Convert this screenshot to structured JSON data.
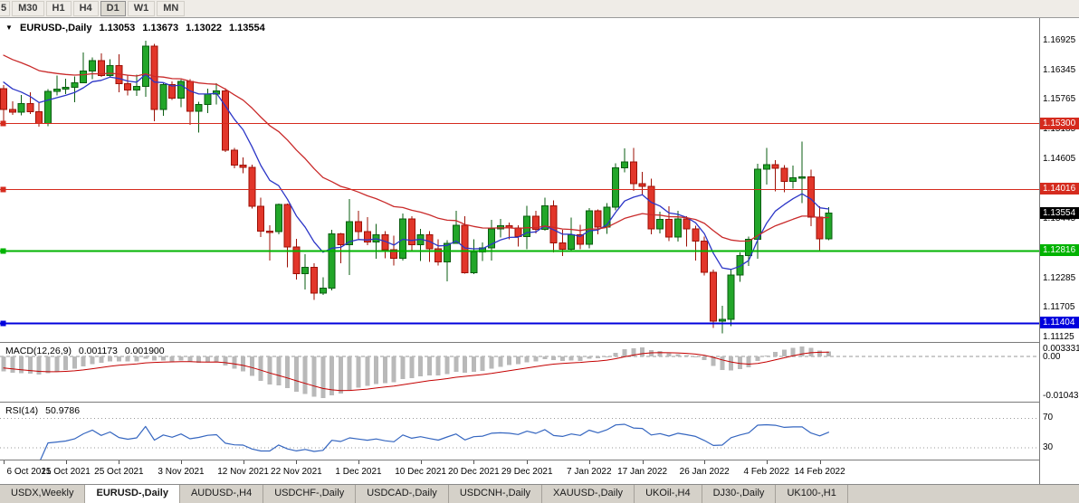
{
  "toolbar": {
    "timeframes": [
      {
        "label": "5",
        "active": false,
        "partial": true
      },
      {
        "label": "M30",
        "active": false
      },
      {
        "label": "H1",
        "active": false
      },
      {
        "label": "H4",
        "active": false
      },
      {
        "label": "D1",
        "active": true
      },
      {
        "label": "W1",
        "active": false
      },
      {
        "label": "MN",
        "active": false
      }
    ]
  },
  "chart": {
    "symbol_period": "EURUSD-,Daily",
    "ohlc": {
      "open": "1.13053",
      "high": "1.13673",
      "low": "1.13022",
      "close": "1.13554"
    },
    "current_price": "1.13554",
    "current_price_bg": "#000000",
    "price_axis_labels": [
      "1.16925",
      "1.16345",
      "1.15765",
      "1.15185",
      "1.14605",
      "1.14025",
      "1.13445",
      "1.12865",
      "1.12285",
      "1.11705",
      "1.11125"
    ],
    "levels": [
      {
        "price": 1.153,
        "label": "1.15300",
        "color": "#d52b1e",
        "width": 1
      },
      {
        "price": 1.14016,
        "label": "1.14016",
        "color": "#d52b1e",
        "width": 1
      },
      {
        "price": 1.12816,
        "label": "1.12816",
        "color": "#00b300",
        "width": 2
      },
      {
        "price": 1.11404,
        "label": "1.11404",
        "color": "#0000dd",
        "width": 2
      }
    ]
  },
  "macd": {
    "label": "MACD(12,26,9)",
    "value_main": "0.001173",
    "value_signal": "0.001900",
    "axis": {
      "top": "0.003331",
      "zero": "0.00",
      "bottom": "-0.010435"
    }
  },
  "rsi": {
    "label": "RSI(14)",
    "value": "50.9786",
    "levels": [
      {
        "value": 70,
        "label": "70"
      },
      {
        "value": 30,
        "label": "30"
      }
    ]
  },
  "time_axis": {
    "labels": [
      {
        "text": "6 Oct 2021",
        "index": 0
      },
      {
        "text": "15 Oct 2021",
        "index": 7
      },
      {
        "text": "25 Oct 2021",
        "index": 13
      },
      {
        "text": "3 Nov 2021",
        "index": 20
      },
      {
        "text": "12 Nov 2021",
        "index": 27
      },
      {
        "text": "22 Nov 2021",
        "index": 33
      },
      {
        "text": "1 Dec 2021",
        "index": 40
      },
      {
        "text": "10 Dec 2021",
        "index": 47
      },
      {
        "text": "20 Dec 2021",
        "index": 53
      },
      {
        "text": "29 Dec 2021",
        "index": 59
      },
      {
        "text": "7 Jan 2022",
        "index": 66
      },
      {
        "text": "17 Jan 2022",
        "index": 72
      },
      {
        "text": "26 Jan 2022",
        "index": 79
      },
      {
        "text": "4 Feb 2022",
        "index": 86
      },
      {
        "text": "14 Feb 2022",
        "index": 92
      }
    ]
  },
  "tabs": [
    {
      "label": "USDX,Weekly",
      "active": false
    },
    {
      "label": "EURUSD-,Daily",
      "active": true
    },
    {
      "label": "AUDUSD-,H4",
      "active": false
    },
    {
      "label": "USDCHF-,Daily",
      "active": false
    },
    {
      "label": "USDCAD-,Daily",
      "active": false
    },
    {
      "label": "USDCNH-,Daily",
      "active": false
    },
    {
      "label": "XAUUSD-,Daily",
      "active": false
    },
    {
      "label": "UKOil-,H4",
      "active": false
    },
    {
      "label": "DJ30-,Daily",
      "active": false
    },
    {
      "label": "UK100-,H1",
      "active": false
    }
  ],
  "chart_data": {
    "type": "candlestick",
    "symbol": "EURUSD",
    "timeframe": "Daily",
    "title": "EURUSD-,Daily 1.13053 1.13673 1.13022 1.13554",
    "x_range": [
      "6 Oct 2021",
      "15 Feb 2022"
    ],
    "y_range": [
      1.1104,
      1.1736
    ],
    "legend_position": "none",
    "grid": false,
    "candles": [
      [
        "6 Oct",
        1.1598,
        1.1605,
        1.1528,
        1.1558
      ],
      [
        "7 Oct",
        1.1558,
        1.1574,
        1.1547,
        1.1552
      ],
      [
        "8 Oct",
        1.1552,
        1.1586,
        1.1546,
        1.1569
      ],
      [
        "11 Oct",
        1.1569,
        1.1591,
        1.1549,
        1.1553
      ],
      [
        "12 Oct",
        1.1553,
        1.1571,
        1.1524,
        1.153
      ],
      [
        "13 Oct",
        1.153,
        1.1597,
        1.1525,
        1.1593
      ],
      [
        "14 Oct",
        1.1593,
        1.1624,
        1.1585,
        1.1597
      ],
      [
        "15 Oct",
        1.1597,
        1.1618,
        1.1588,
        1.1601
      ],
      [
        "18 Oct",
        1.1601,
        1.1622,
        1.1572,
        1.161
      ],
      [
        "19 Oct",
        1.161,
        1.1669,
        1.1609,
        1.1633
      ],
      [
        "20 Oct",
        1.1633,
        1.1659,
        1.1617,
        1.1653
      ],
      [
        "21 Oct",
        1.1653,
        1.1667,
        1.1621,
        1.1624
      ],
      [
        "22 Oct",
        1.1624,
        1.1656,
        1.162,
        1.1643
      ],
      [
        "25 Oct",
        1.1643,
        1.1665,
        1.1591,
        1.1608
      ],
      [
        "26 Oct",
        1.1608,
        1.1626,
        1.1585,
        1.1596
      ],
      [
        "27 Oct",
        1.1596,
        1.1626,
        1.1584,
        1.1603
      ],
      [
        "28 Oct",
        1.1603,
        1.1692,
        1.1582,
        1.1681
      ],
      [
        "29 Oct",
        1.1681,
        1.1686,
        1.1535,
        1.1558
      ],
      [
        "1 Nov",
        1.1558,
        1.1609,
        1.1545,
        1.1606
      ],
      [
        "2 Nov",
        1.1606,
        1.1612,
        1.1576,
        1.158
      ],
      [
        "3 Nov",
        1.158,
        1.1616,
        1.1562,
        1.1612
      ],
      [
        "4 Nov",
        1.1612,
        1.1617,
        1.1528,
        1.1554
      ],
      [
        "5 Nov",
        1.1554,
        1.1573,
        1.1513,
        1.1567
      ],
      [
        "8 Nov",
        1.1567,
        1.1598,
        1.1551,
        1.1588
      ],
      [
        "9 Nov",
        1.1588,
        1.1609,
        1.1567,
        1.1594
      ],
      [
        "10 Nov",
        1.1594,
        1.1599,
        1.1475,
        1.1478
      ],
      [
        "11 Nov",
        1.1478,
        1.1483,
        1.1443,
        1.1449
      ],
      [
        "12 Nov",
        1.1449,
        1.1464,
        1.1433,
        1.1445
      ],
      [
        "15 Nov",
        1.1445,
        1.145,
        1.1364,
        1.1369
      ],
      [
        "16 Nov",
        1.1369,
        1.1386,
        1.1309,
        1.132
      ],
      [
        "17 Nov",
        1.132,
        1.1332,
        1.1263,
        1.1319
      ],
      [
        "18 Nov",
        1.1319,
        1.1374,
        1.1314,
        1.1372
      ],
      [
        "19 Nov",
        1.1372,
        1.1374,
        1.125,
        1.1289
      ],
      [
        "22 Nov",
        1.1289,
        1.1305,
        1.1226,
        1.1237
      ],
      [
        "23 Nov",
        1.1237,
        1.1275,
        1.1206,
        1.125
      ],
      [
        "24 Nov",
        1.125,
        1.1258,
        1.1186,
        1.1199
      ],
      [
        "25 Nov",
        1.1199,
        1.123,
        1.1196,
        1.1209
      ],
      [
        "26 Nov",
        1.1209,
        1.1323,
        1.1205,
        1.1315
      ],
      [
        "29 Nov",
        1.1315,
        1.1317,
        1.1258,
        1.1294
      ],
      [
        "30 Nov",
        1.1294,
        1.1383,
        1.1235,
        1.1339
      ],
      [
        "1 Dec",
        1.1339,
        1.136,
        1.1305,
        1.1319
      ],
      [
        "2 Dec",
        1.1319,
        1.1348,
        1.1293,
        1.1299
      ],
      [
        "3 Dec",
        1.1299,
        1.1334,
        1.1266,
        1.1313
      ],
      [
        "6 Dec",
        1.1313,
        1.132,
        1.1267,
        1.1284
      ],
      [
        "7 Dec",
        1.1284,
        1.1311,
        1.1253,
        1.1267
      ],
      [
        "8 Dec",
        1.1267,
        1.1355,
        1.1263,
        1.1344
      ],
      [
        "9 Dec",
        1.1344,
        1.1349,
        1.128,
        1.1294
      ],
      [
        "10 Dec",
        1.1294,
        1.1325,
        1.1262,
        1.1313
      ],
      [
        "13 Dec",
        1.1313,
        1.132,
        1.126,
        1.1286
      ],
      [
        "14 Dec",
        1.1286,
        1.1304,
        1.1253,
        1.126
      ],
      [
        "15 Dec",
        1.126,
        1.1303,
        1.1222,
        1.1296
      ],
      [
        "16 Dec",
        1.1296,
        1.136,
        1.1296,
        1.1332
      ],
      [
        "17 Dec",
        1.1332,
        1.1349,
        1.1237,
        1.1239
      ],
      [
        "20 Dec",
        1.1239,
        1.1304,
        1.1236,
        1.128
      ],
      [
        "21 Dec",
        1.128,
        1.1298,
        1.1262,
        1.1288
      ],
      [
        "22 Dec",
        1.1288,
        1.1342,
        1.1263,
        1.1325
      ],
      [
        "23 Dec",
        1.1325,
        1.1344,
        1.1308,
        1.1331
      ],
      [
        "27 Dec",
        1.1331,
        1.1337,
        1.1304,
        1.1326
      ],
      [
        "28 Dec",
        1.1326,
        1.1332,
        1.129,
        1.131
      ],
      [
        "29 Dec",
        1.131,
        1.137,
        1.1285,
        1.1349
      ],
      [
        "30 Dec",
        1.1349,
        1.136,
        1.1316,
        1.1324
      ],
      [
        "31 Dec",
        1.1324,
        1.1386,
        1.1321,
        1.137
      ],
      [
        "3 Jan",
        1.137,
        1.138,
        1.1279,
        1.1297
      ],
      [
        "4 Jan",
        1.1297,
        1.1323,
        1.1272,
        1.1285
      ],
      [
        "5 Jan",
        1.1285,
        1.1347,
        1.128,
        1.1313
      ],
      [
        "6 Jan",
        1.1313,
        1.1333,
        1.1285,
        1.1295
      ],
      [
        "7 Jan",
        1.1295,
        1.1365,
        1.1287,
        1.136
      ],
      [
        "10 Jan",
        1.136,
        1.1363,
        1.1314,
        1.1328
      ],
      [
        "11 Jan",
        1.1328,
        1.1375,
        1.1315,
        1.1367
      ],
      [
        "12 Jan",
        1.1367,
        1.1453,
        1.1361,
        1.1444
      ],
      [
        "13 Jan",
        1.1444,
        1.1482,
        1.1435,
        1.1455
      ],
      [
        "14 Jan",
        1.1455,
        1.1483,
        1.1399,
        1.1413
      ],
      [
        "17 Jan",
        1.1413,
        1.1436,
        1.1392,
        1.1408
      ],
      [
        "18 Jan",
        1.1408,
        1.1423,
        1.1314,
        1.1325
      ],
      [
        "19 Jan",
        1.1325,
        1.1358,
        1.1316,
        1.1343
      ],
      [
        "20 Jan",
        1.1343,
        1.1369,
        1.1301,
        1.1309
      ],
      [
        "21 Jan",
        1.1309,
        1.136,
        1.13,
        1.1344
      ],
      [
        "24 Jan",
        1.1344,
        1.1349,
        1.129,
        1.1325
      ],
      [
        "25 Jan",
        1.1325,
        1.1331,
        1.1263,
        1.1301
      ],
      [
        "26 Jan",
        1.1301,
        1.131,
        1.1234,
        1.124
      ],
      [
        "27 Jan",
        1.124,
        1.1245,
        1.1131,
        1.1145
      ],
      [
        "28 Jan",
        1.1145,
        1.1175,
        1.1121,
        1.1148
      ],
      [
        "31 Jan",
        1.1148,
        1.1246,
        1.1135,
        1.1235
      ],
      [
        "1 Feb",
        1.1235,
        1.1279,
        1.1221,
        1.1273
      ],
      [
        "2 Feb",
        1.1273,
        1.131,
        1.1252,
        1.1304
      ],
      [
        "3 Feb",
        1.1304,
        1.1452,
        1.1266,
        1.1441
      ],
      [
        "4 Feb",
        1.1441,
        1.1483,
        1.1411,
        1.145
      ],
      [
        "7 Feb",
        1.145,
        1.1459,
        1.1398,
        1.1443
      ],
      [
        "8 Feb",
        1.1443,
        1.1449,
        1.1396,
        1.1417
      ],
      [
        "9 Feb",
        1.1417,
        1.1448,
        1.1403,
        1.1424
      ],
      [
        "10 Feb",
        1.1424,
        1.1495,
        1.1375,
        1.1426
      ],
      [
        "11 Feb",
        1.1426,
        1.144,
        1.133,
        1.1348
      ],
      [
        "14 Feb",
        1.1348,
        1.1369,
        1.128,
        1.1305
      ],
      [
        "15 Feb",
        1.13053,
        1.13673,
        1.13022,
        1.13554
      ]
    ],
    "indicator_warmup_closes": [
      1.1745,
      1.1738,
      1.1731,
      1.1724,
      1.1716,
      1.1709,
      1.1702,
      1.1695,
      1.1688,
      1.168,
      1.1673,
      1.1666,
      1.1659,
      1.1652,
      1.1645,
      1.1638,
      1.163,
      1.1623,
      1.1616,
      1.1609,
      1.16
    ],
    "moving_averages": [
      {
        "type": "ema",
        "period": 8,
        "color": "#2b35c7"
      },
      {
        "type": "ema",
        "period": 26,
        "color": "#c92a2a"
      }
    ],
    "macd_params": [
      12,
      26,
      9
    ],
    "rsi_params": [
      14
    ],
    "colors": {
      "up": "#22a629",
      "up_border": "#0a5c10",
      "down": "#e2362a",
      "down_border": "#9c1006",
      "macd_hist": "#b9b9b9",
      "macd_signal": "#c40000",
      "rsi_line": "#3566c0",
      "rsi_level": "#9a9a9a",
      "zero_line": "#999999"
    }
  }
}
